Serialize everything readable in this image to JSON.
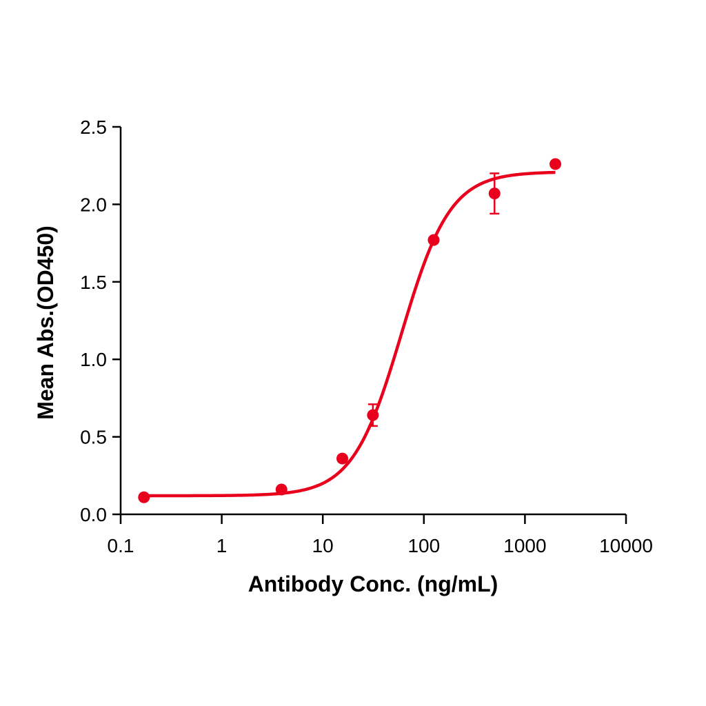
{
  "chart_data": {
    "type": "scatter",
    "title": "",
    "xlabel": "Antibody Conc. (ng/mL)",
    "ylabel": "Mean Abs.(OD450)",
    "xscale": "log",
    "xlim": [
      0.1,
      10000
    ],
    "ylim": [
      0.0,
      2.5
    ],
    "x_ticks": [
      "0.1",
      "1",
      "10",
      "100",
      "1000",
      "10000"
    ],
    "y_ticks": [
      "0.0",
      "0.5",
      "1.0",
      "1.5",
      "2.0",
      "2.5"
    ],
    "grid": false,
    "legend": null,
    "series": [
      {
        "name": "Mean Abs.",
        "color": "#e8001c",
        "marker": "circle",
        "fit": "4PL sigmoidal",
        "x": [
          0.17,
          3.9,
          15.6,
          31.3,
          125,
          500,
          2000
        ],
        "values": [
          0.11,
          0.16,
          0.36,
          0.64,
          1.77,
          2.07,
          2.26
        ],
        "error": [
          0.0,
          0.0,
          0.0,
          0.07,
          0.0,
          0.13,
          0.0
        ]
      }
    ],
    "fit_params": {
      "bottom": 0.12,
      "top": 2.21,
      "ec50": 60,
      "hill": 1.8
    }
  },
  "axes": {
    "x_title": "Antibody Conc. (ng/mL)",
    "y_title": "Mean Abs.(OD450)",
    "x_tick_labels": [
      "0.1",
      "1",
      "10",
      "100",
      "1000",
      "10000"
    ],
    "y_tick_labels": [
      "0.0",
      "0.5",
      "1.0",
      "1.5",
      "2.0",
      "2.5"
    ]
  }
}
